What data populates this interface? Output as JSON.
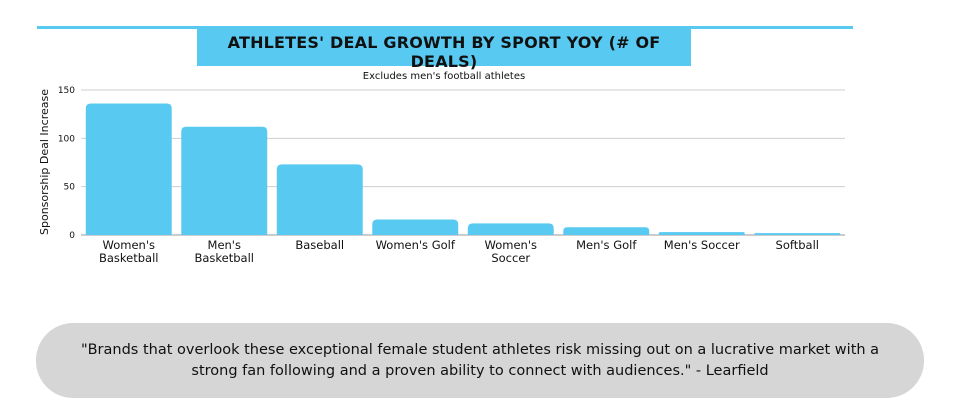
{
  "header": {
    "title": "ATHLETES' DEAL GROWTH BY SPORT YOY (# OF DEALS)",
    "subtitle": "Excludes men's football athletes"
  },
  "chart_data": {
    "type": "bar",
    "title": "ATHLETES' DEAL GROWTH BY SPORT YOY (# OF DEALS)",
    "subtitle": "Excludes men's football athletes",
    "ylabel": "Sponsorship Deal Increase",
    "xlabel": "",
    "categories": [
      "Women's Basketball",
      "Men's Basketball",
      "Baseball",
      "Women's Golf",
      "Women's Soccer",
      "Men's Golf",
      "Men's Soccer",
      "Softball"
    ],
    "category_lines": [
      [
        "Women's",
        "Basketball"
      ],
      [
        "Men's",
        "Basketball"
      ],
      [
        "Baseball"
      ],
      [
        "Women's Golf"
      ],
      [
        "Women's",
        "Soccer"
      ],
      [
        "Men's Golf"
      ],
      [
        "Men's Soccer"
      ],
      [
        "Softball"
      ]
    ],
    "values": [
      136,
      112,
      73,
      16,
      12,
      8,
      3,
      2
    ],
    "ylim": [
      0,
      150
    ],
    "yticks": [
      0,
      50,
      100,
      150
    ],
    "grid": true,
    "bar_color": "#58c9f1"
  },
  "quote": {
    "text": "\"Brands that overlook these exceptional female student athletes risk missing out on a lucrative market with a strong fan following and a proven ability to connect with audiences.\" -  Learfield"
  }
}
